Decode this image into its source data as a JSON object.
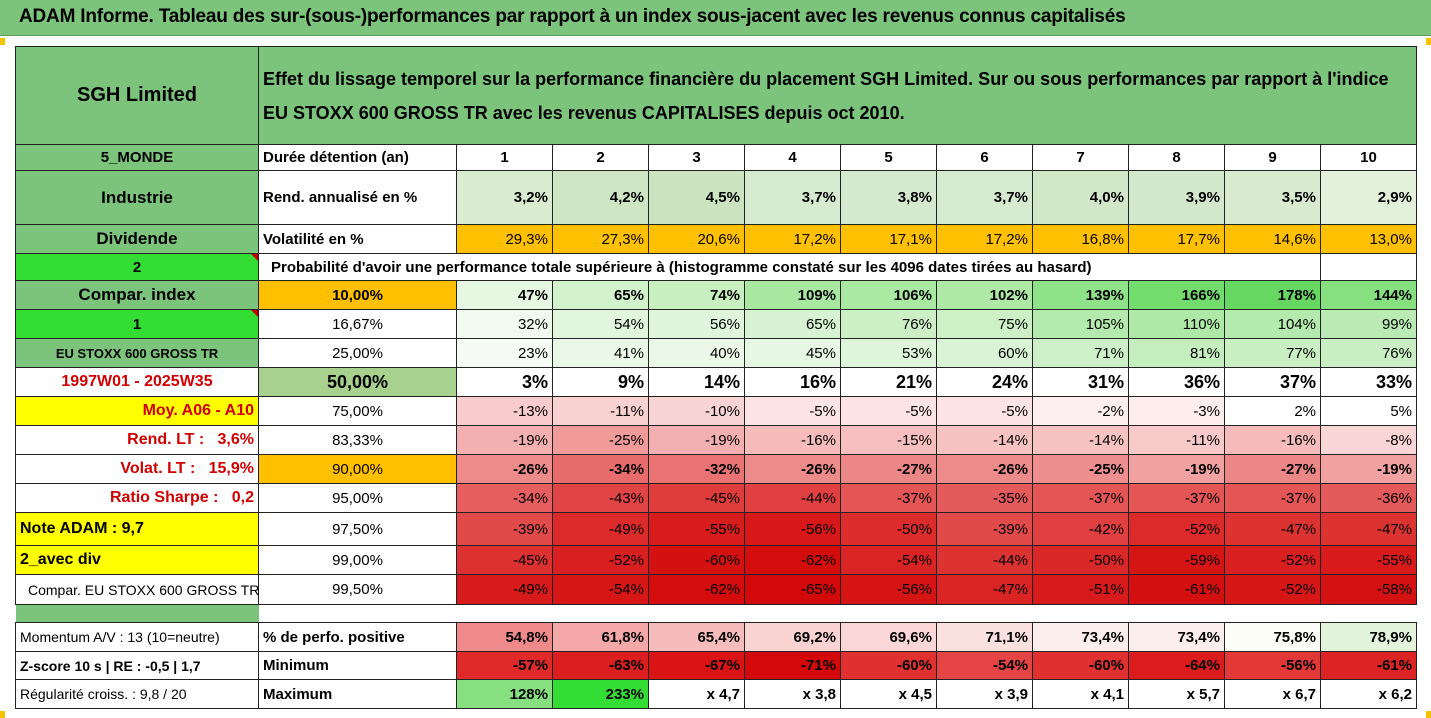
{
  "title": "ADAM Informe. Tableau des sur-(sous-)performances par rapport à un index sous-jacent avec les revenus connus capitalisés",
  "header": {
    "name": "SGH Limited",
    "description": "Effet du lissage temporel sur la performance financière du placement SGH Limited. Sur ou sous performances par rapport à l'indice EU STOXX 600 GROSS TR avec les revenus CAPITALISES depuis oct 2010."
  },
  "rows": {
    "r1": {
      "left": "5_MONDE",
      "label": "Durée détention (an)",
      "values": [
        "1",
        "2",
        "3",
        "4",
        "5",
        "6",
        "7",
        "8",
        "9",
        "10"
      ]
    },
    "r2": {
      "left": "Industrie",
      "label": "Rend. annualisé en %",
      "values": [
        "3,2%",
        "4,2%",
        "4,5%",
        "3,7%",
        "3,8%",
        "3,7%",
        "4,0%",
        "3,9%",
        "3,5%",
        "2,9%"
      ]
    },
    "r3": {
      "left": "Dividende",
      "label": "Volatilité en %",
      "values": [
        "29,3%",
        "27,3%",
        "20,6%",
        "17,2%",
        "17,1%",
        "17,2%",
        "16,8%",
        "17,7%",
        "14,6%",
        "13,0%"
      ]
    },
    "r4": {
      "left": "2",
      "text": "Probabilité d'avoir une performance totale supérieure à (histogramme constaté sur les 4096 dates tirées au hasard)"
    },
    "r5": {
      "left": "Compar. index",
      "label": "10,00%",
      "values": [
        "47%",
        "65%",
        "74%",
        "109%",
        "106%",
        "102%",
        "139%",
        "166%",
        "178%",
        "144%"
      ]
    },
    "r6": {
      "left": "1",
      "label": "16,67%",
      "values": [
        "32%",
        "54%",
        "56%",
        "65%",
        "76%",
        "75%",
        "105%",
        "110%",
        "104%",
        "99%"
      ]
    },
    "r7": {
      "left": "EU STOXX 600 GROSS TR",
      "label": "25,00%",
      "values": [
        "23%",
        "41%",
        "40%",
        "45%",
        "53%",
        "60%",
        "71%",
        "81%",
        "77%",
        "76%"
      ]
    },
    "r8": {
      "left": "1997W01 - 2025W35",
      "label": "50,00%",
      "values": [
        "3%",
        "9%",
        "14%",
        "16%",
        "21%",
        "24%",
        "31%",
        "36%",
        "37%",
        "33%"
      ]
    },
    "r9": {
      "left": "Moy. A06 - A10",
      "label": "75,00%",
      "values": [
        "-13%",
        "-11%",
        "-10%",
        "-5%",
        "-5%",
        "-5%",
        "-2%",
        "-3%",
        "2%",
        "5%"
      ]
    },
    "r10": {
      "left": "Rend. LT :   3,6%",
      "label": "83,33%",
      "values": [
        "-19%",
        "-25%",
        "-19%",
        "-16%",
        "-15%",
        "-14%",
        "-14%",
        "-11%",
        "-16%",
        "-8%"
      ]
    },
    "r11": {
      "left": "Volat. LT :   15,9%",
      "label": "90,00%",
      "values": [
        "-26%",
        "-34%",
        "-32%",
        "-26%",
        "-27%",
        "-26%",
        "-25%",
        "-19%",
        "-27%",
        "-19%"
      ]
    },
    "r12": {
      "left": "Ratio Sharpe :   0,2",
      "label": "95,00%",
      "values": [
        "-34%",
        "-43%",
        "-45%",
        "-44%",
        "-37%",
        "-35%",
        "-37%",
        "-37%",
        "-37%",
        "-36%"
      ]
    },
    "r13": {
      "left": "Note ADAM : 9,7",
      "label": "97,50%",
      "values": [
        "-39%",
        "-49%",
        "-55%",
        "-56%",
        "-50%",
        "-39%",
        "-42%",
        "-52%",
        "-47%",
        "-47%"
      ]
    },
    "r14": {
      "left": "2_avec div",
      "label": "99,00%",
      "values": [
        "-45%",
        "-52%",
        "-60%",
        "-62%",
        "-54%",
        "-44%",
        "-50%",
        "-59%",
        "-52%",
        "-55%"
      ]
    },
    "r15": {
      "left": "Compar. EU STOXX 600 GROSS TR",
      "label": "99,50%",
      "values": [
        "-49%",
        "-54%",
        "-62%",
        "-65%",
        "-56%",
        "-47%",
        "-51%",
        "-61%",
        "-52%",
        "-58%"
      ]
    },
    "r16": {
      "left": "Momentum A/V : 13 (10=neutre)",
      "label": "% de perfo. positive",
      "values": [
        "54,8%",
        "61,8%",
        "65,4%",
        "69,2%",
        "69,6%",
        "71,1%",
        "73,4%",
        "73,4%",
        "75,8%",
        "78,9%"
      ]
    },
    "r17": {
      "left": "Z-score 10 s  | RE : -0,5 | 1,7",
      "label": "Minimum",
      "values": [
        "-57%",
        "-63%",
        "-67%",
        "-71%",
        "-60%",
        "-54%",
        "-60%",
        "-64%",
        "-56%",
        "-61%"
      ]
    },
    "r18": {
      "left": "Régularité croiss. : 9,8 / 20",
      "label": "Maximum",
      "values": [
        "128%",
        "233%",
        "x 4,7",
        "x 3,8",
        "x 4,5",
        "x 3,9",
        "x 4,1",
        "x 5,7",
        "x 6,7",
        "x 6,2"
      ]
    }
  },
  "colors": {
    "r2": [
      "#d9ecd0",
      "#cfe6c4",
      "#cbe4bf",
      "#d6ead0",
      "#d4e9cd",
      "#d6ead0",
      "#d1e7c8",
      "#d3e8cb",
      "#d8ebcf",
      "#e2f0dc"
    ],
    "r3": [
      "#ffc000",
      "#ffc000",
      "#ffc000",
      "#ffc000",
      "#ffc000",
      "#ffc000",
      "#ffc000",
      "#ffc000",
      "#ffc000",
      "#ffc000"
    ],
    "r5": [
      "#e6f8e2",
      "#d2f2cc",
      "#c8efc0",
      "#a8e8a0",
      "#aae9a2",
      "#aeeaa6",
      "#8ee287",
      "#72dc6d",
      "#66d862",
      "#86e07f"
    ],
    "r6": [
      "#f0faee",
      "#e2f6de",
      "#e0f5dc",
      "#d8f3d4",
      "#ccefc6",
      "#cdf0c7",
      "#b4eaad",
      "#afe9a8",
      "#b5eaae",
      "#bbebb4"
    ],
    "r7": [
      "#f6fcf5",
      "#eaf8e7",
      "#ebf8e8",
      "#e6f7e3",
      "#dff5db",
      "#d9f3d5",
      "#cdf0c8",
      "#c5eebf",
      "#c9efc3",
      "#caefc4"
    ],
    "r8": [
      "#ffffff",
      "#ffffff",
      "#ffffff",
      "#ffffff",
      "#ffffff",
      "#ffffff",
      "#ffffff",
      "#ffffff",
      "#ffffff",
      "#ffffff"
    ],
    "r9": [
      "#f8cccc",
      "#f9d1d1",
      "#f9d4d4",
      "#fce4e4",
      "#fce4e4",
      "#fce4e4",
      "#fdefef",
      "#fdeded",
      "#ffffff",
      "#ffffff"
    ],
    "r10": [
      "#f4b0b0",
      "#f09a9a",
      "#f4b0b0",
      "#f6bbbb",
      "#f6bebe",
      "#f7c2c2",
      "#f7c2c2",
      "#f8c9c9",
      "#f6bbbb",
      "#fad5d5"
    ],
    "r11": [
      "#ed8a8a",
      "#e86c6c",
      "#e97373",
      "#ed8a8a",
      "#ec8787",
      "#ed8a8a",
      "#ee8e8e",
      "#f2a1a1",
      "#ec8787",
      "#f2a1a1"
    ],
    "r12": [
      "#e65e5e",
      "#e14444",
      "#df3c3c",
      "#e04040",
      "#e45656",
      "#e55b5b",
      "#e45656",
      "#e45656",
      "#e45656",
      "#e45a5a"
    ],
    "r13": [
      "#e24a4a",
      "#dc2a2a",
      "#d81c1c",
      "#d81818",
      "#dc2c2c",
      "#e24a4a",
      "#e04040",
      "#dc2a2a",
      "#dd3232",
      "#dd3232"
    ],
    "r14": [
      "#dd3030",
      "#d91f1f",
      "#d51010",
      "#d40c0c",
      "#da2424",
      "#dd3232",
      "#da2828",
      "#d51414",
      "#d91f1f",
      "#d81a1a"
    ],
    "r15": [
      "#d81a1a",
      "#d71616",
      "#d40c0c",
      "#d30808",
      "#d71414",
      "#da2424",
      "#d81a1a",
      "#d40f0f",
      "#d71616",
      "#d51212"
    ],
    "r16": [
      "#f08a8a",
      "#f4a8a8",
      "#f6bcbc",
      "#f9d2d2",
      "#fad6d6",
      "#fbe0e0",
      "#fdeeee",
      "#fdeeee",
      "#fcfdf7",
      "#e2f5dc"
    ],
    "r17": [
      "#e02a2a",
      "#dd1e1e",
      "#da1414",
      "#d40808",
      "#e03030",
      "#e44444",
      "#e03030",
      "#dc1c1c",
      "#e23838",
      "#dd2424"
    ],
    "r18": [
      "#86e07f",
      "#33dd33",
      "#ffffff",
      "#ffffff",
      "#ffffff",
      "#ffffff",
      "#ffffff",
      "#ffffff",
      "#ffffff",
      "#ffffff"
    ]
  }
}
